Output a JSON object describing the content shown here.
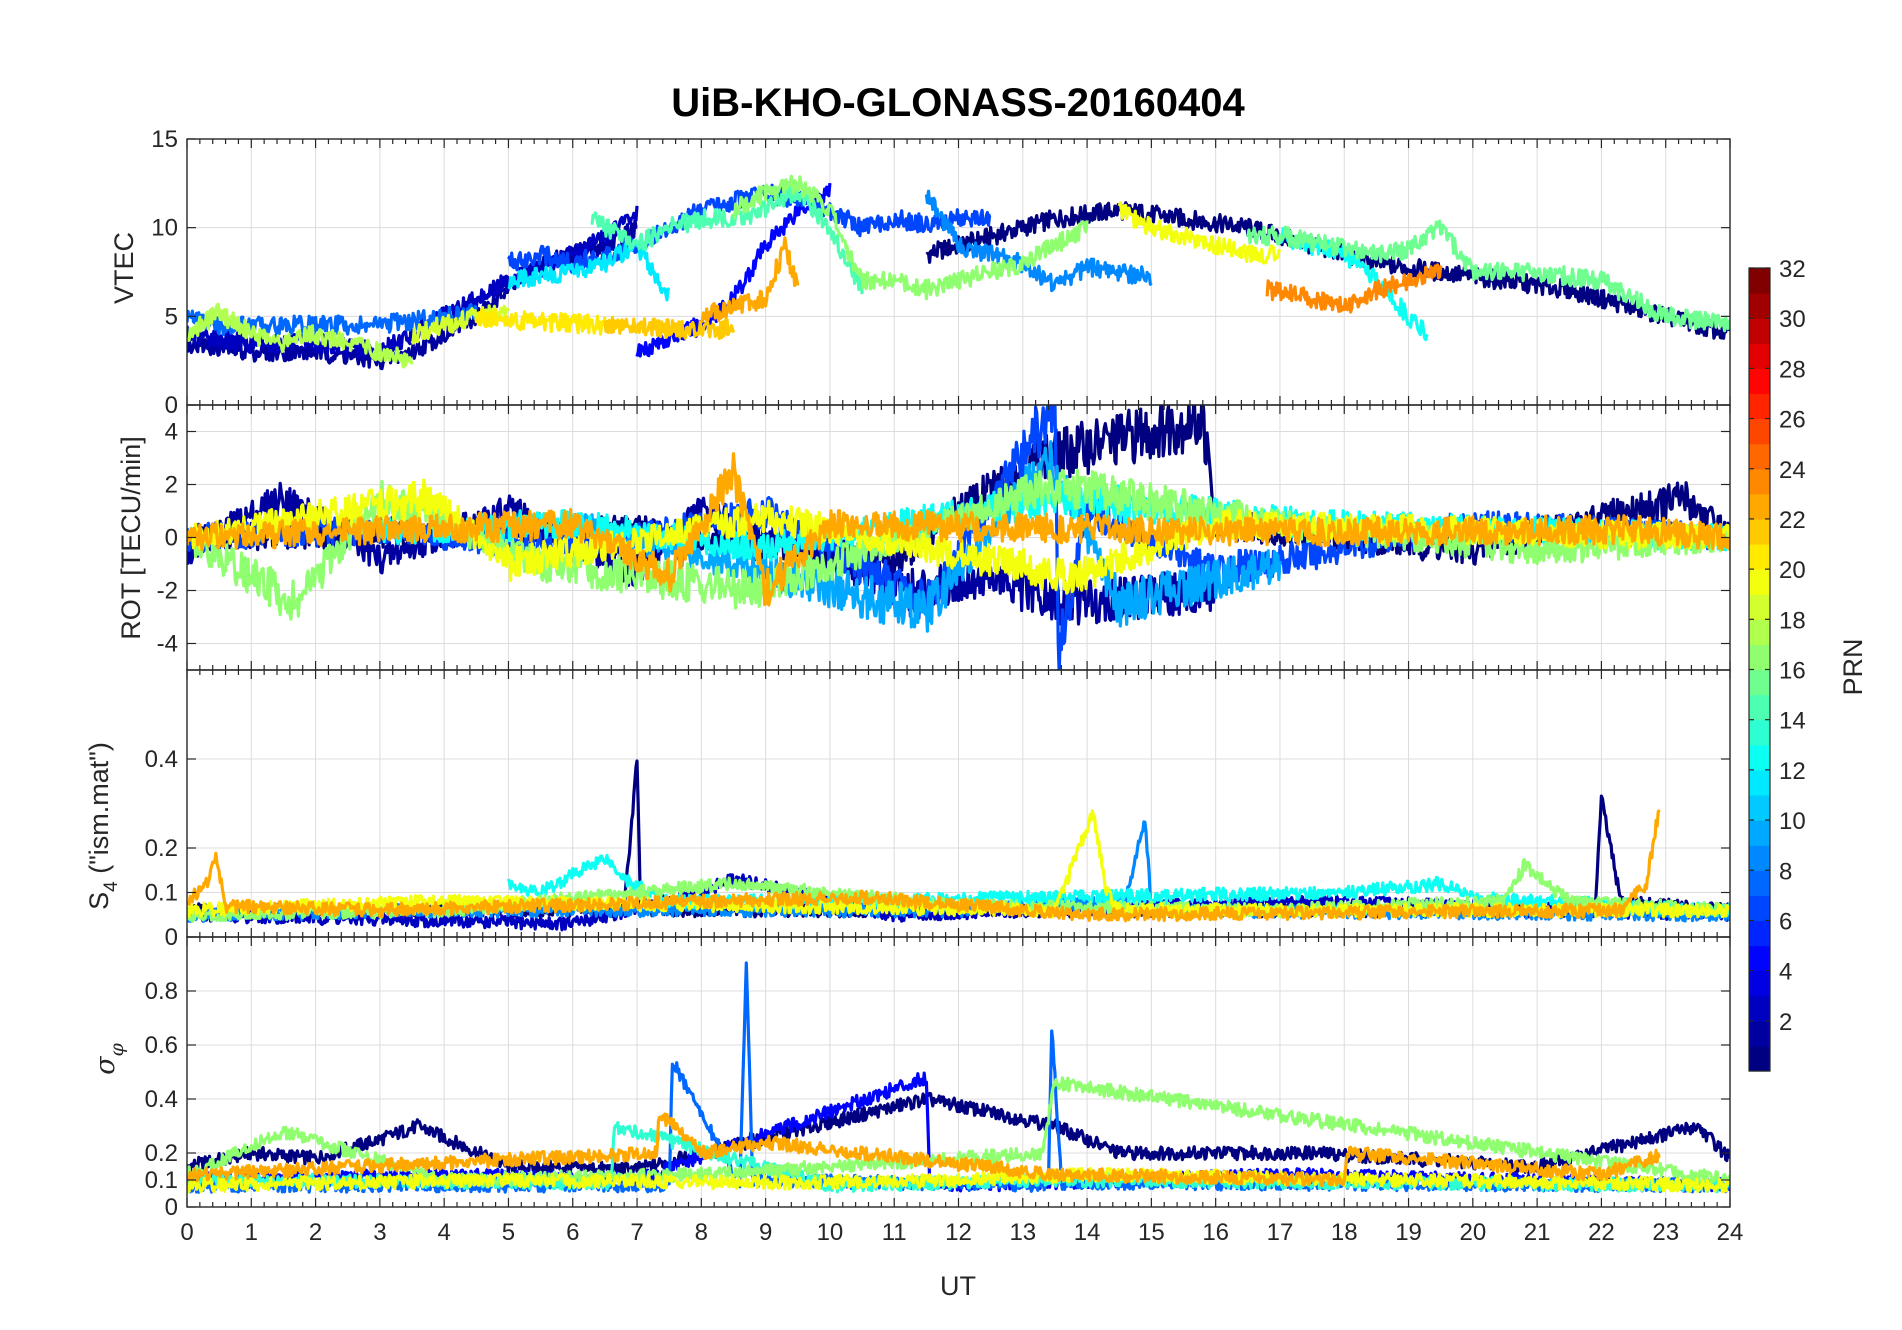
{
  "chart_data": [
    {
      "type": "line",
      "panel": "vtec",
      "title": "UiB-KHO-GLONASS-20160404",
      "xlabel": "UT",
      "ylabel": "VTEC",
      "xlim": [
        0,
        24
      ],
      "ylim": [
        0,
        15
      ],
      "xticks": [
        0,
        1,
        2,
        3,
        4,
        5,
        6,
        7,
        8,
        9,
        10,
        11,
        12,
        13,
        14,
        15,
        16,
        17,
        18,
        19,
        20,
        21,
        22,
        23,
        24
      ],
      "yticks": [
        0,
        5,
        10,
        15
      ],
      "grid": true,
      "series": [
        {
          "prn": 1,
          "x": [
            11.5,
            12.5,
            13.5,
            14.5,
            15.5,
            16.5,
            17.5,
            18.5,
            19.5,
            20.5,
            21.5,
            22.5,
            23.5,
            24
          ],
          "y": [
            8.5,
            9.5,
            10.5,
            11,
            10.5,
            10,
            9,
            8,
            7.5,
            7,
            6.5,
            5.5,
            4.5,
            4
          ]
        },
        {
          "prn": 2,
          "x": [
            0,
            1,
            2,
            3,
            3.5,
            4,
            4.5,
            5,
            5.5,
            6,
            6.5,
            7
          ],
          "y": [
            3.5,
            3,
            3,
            2.5,
            3,
            4,
            5,
            6.5,
            8,
            8.5,
            9,
            10
          ]
        },
        {
          "prn": 3,
          "x": [
            0,
            1,
            2,
            3,
            4,
            5,
            6,
            6.5,
            7
          ],
          "y": [
            4,
            3.5,
            3.5,
            3,
            5,
            7,
            8.5,
            9.5,
            10.8
          ]
        },
        {
          "prn": 5,
          "x": [
            7,
            7.5,
            8,
            8.5,
            9,
            9.5,
            10
          ],
          "y": [
            3,
            3.8,
            4.5,
            6,
            9,
            11,
            12
          ]
        },
        {
          "prn": 7,
          "x": [
            5,
            5.5,
            6,
            6.5,
            7,
            7.5,
            8,
            8.5,
            9,
            9.5,
            10,
            10.5,
            11,
            11.5,
            12,
            12.5
          ],
          "y": [
            8,
            8.5,
            8,
            8.5,
            9,
            10,
            11,
            11.5,
            12,
            11.5,
            11,
            10,
            10.5,
            10.2,
            10.5,
            10.5
          ]
        },
        {
          "prn": 8,
          "x": [
            0,
            0.5,
            1,
            2,
            3,
            4,
            4.5
          ],
          "y": [
            5,
            4.5,
            4.5,
            4.5,
            4.5,
            5,
            5.2
          ]
        },
        {
          "prn": 9,
          "x": [
            11.5,
            12,
            13,
            13.5,
            14,
            14.5,
            15
          ],
          "y": [
            12,
            9,
            8,
            6.8,
            7.8,
            7.5,
            7.2
          ]
        },
        {
          "prn": 12,
          "x": [
            5,
            6,
            6.5,
            7,
            7.5
          ],
          "y": [
            7,
            7.5,
            8,
            9,
            6
          ]
        },
        {
          "prn": 13,
          "x": [
            17,
            17.5,
            18,
            18.5,
            19,
            19.3
          ],
          "y": [
            9.5,
            9,
            8.5,
            7,
            5,
            4
          ]
        },
        {
          "prn": 15,
          "x": [
            6.3,
            7,
            7.5,
            8,
            8.5,
            9,
            9.5,
            10,
            10.5
          ],
          "y": [
            10.5,
            9,
            10,
            10.5,
            10.5,
            11,
            12,
            10,
            6.5
          ]
        },
        {
          "prn": 16,
          "x": [
            16.5,
            17,
            17.5,
            18,
            18.5,
            19,
            19.5,
            20,
            21,
            22,
            23,
            24
          ],
          "y": [
            9.5,
            9.6,
            9.2,
            8.8,
            8.5,
            8.8,
            10,
            7.5,
            7.5,
            7,
            5,
            4.5
          ]
        },
        {
          "prn": 17,
          "x": [
            8.5,
            9,
            9.5,
            10,
            10.5,
            11,
            11.5,
            12,
            12.5,
            13,
            13.5,
            14
          ],
          "y": [
            11,
            12,
            12.5,
            11,
            7,
            7,
            6.5,
            7,
            7.5,
            8,
            9,
            10
          ]
        },
        {
          "prn": 18,
          "x": [
            0,
            0.5,
            1,
            1.5,
            2,
            3,
            3.5
          ],
          "y": [
            4,
            5.2,
            4,
            3.5,
            4,
            3,
            2.5
          ]
        },
        {
          "prn": 19,
          "x": [
            3.5,
            4,
            4.5,
            5
          ],
          "y": [
            4,
            4.5,
            5,
            5.2
          ]
        },
        {
          "prn": 20,
          "x": [
            14.5,
            15,
            15.5,
            16,
            16.5,
            17
          ],
          "y": [
            11,
            10,
            9.5,
            9,
            8.5,
            8.5
          ]
        },
        {
          "prn": 21,
          "x": [
            4.5,
            5,
            5.5,
            6,
            6.5
          ],
          "y": [
            5,
            4.8,
            4.7,
            4.6,
            4.5
          ]
        },
        {
          "prn": 22,
          "x": [
            6.5,
            7,
            7.5,
            8,
            8.5
          ],
          "y": [
            4.5,
            4.5,
            4.3,
            4.2,
            4.3
          ]
        },
        {
          "prn": 23,
          "x": [
            8,
            8.5,
            9,
            9.3,
            9.5
          ],
          "y": [
            5,
            5.5,
            6,
            9,
            6.5
          ]
        },
        {
          "prn": 24,
          "x": [
            16.8,
            17.5,
            18,
            18.5,
            19,
            19.5
          ],
          "y": [
            6.5,
            6,
            5.5,
            6.5,
            7,
            7.5
          ]
        }
      ]
    },
    {
      "type": "line",
      "panel": "rot",
      "ylabel": "ROT [TECU/min]",
      "xlim": [
        0,
        24
      ],
      "ylim": [
        -5,
        5
      ],
      "yticks": [
        -4,
        -2,
        0,
        2,
        4
      ],
      "grid": true,
      "series": [
        {
          "prn": 1,
          "x": [
            0,
            7,
            11,
            12,
            13.3,
            15.8,
            16,
            20,
            23.3,
            24
          ],
          "y": [
            0,
            0.3,
            -1,
            1,
            3,
            4.5,
            0.5,
            -0.5,
            1.5,
            0
          ]
        },
        {
          "prn": 2,
          "x": [
            0,
            1.5,
            3,
            5,
            7,
            8,
            11.3,
            12.5,
            13.5,
            16
          ],
          "y": [
            -0.5,
            1.5,
            -0.8,
            1,
            -1.3,
            1,
            -2,
            -1.5,
            -2.5,
            -2
          ]
        },
        {
          "prn": 7,
          "x": [
            0,
            3,
            6,
            9,
            11.5,
            13.5,
            13.55,
            14,
            16,
            20,
            24
          ],
          "y": [
            0,
            0.3,
            -0.5,
            1,
            -2.5,
            5,
            -4.5,
            1,
            -1.3,
            0.5,
            0
          ]
        },
        {
          "prn": 10,
          "x": [
            6,
            11.5,
            13.4,
            14.5,
            17
          ],
          "y": [
            0.5,
            -2.8,
            3,
            -2.5,
            -1
          ]
        },
        {
          "prn": 13,
          "x": [
            3,
            6,
            9,
            13.5,
            17.5,
            24
          ],
          "y": [
            0.3,
            0.5,
            -0.4,
            1.5,
            0.5,
            0
          ]
        },
        {
          "prn": 17,
          "x": [
            0,
            1.7,
            3,
            5.5,
            8.8,
            13.5,
            17,
            21,
            24
          ],
          "y": [
            0,
            -2.5,
            1.5,
            -1,
            -2,
            2,
            0.5,
            -0.5,
            0
          ]
        },
        {
          "prn": 20,
          "x": [
            0,
            3.8,
            5,
            9,
            13.8,
            16,
            24
          ],
          "y": [
            0,
            1.5,
            -1,
            0.8,
            -1.5,
            0.5,
            0
          ]
        },
        {
          "prn": 23,
          "x": [
            0,
            6,
            7.5,
            8.5,
            9,
            10,
            17,
            22.5,
            24
          ],
          "y": [
            0,
            0.5,
            -1.5,
            2.5,
            -2,
            0.5,
            0.2,
            0.3,
            0
          ]
        }
      ]
    },
    {
      "type": "line",
      "panel": "s4",
      "ylabel": "S4 (\"ism.mat\")",
      "xlim": [
        0,
        24
      ],
      "ylim": [
        0,
        0.6
      ],
      "yticks": [
        0,
        0.1,
        0.2,
        0.4
      ],
      "grid": true,
      "series": [
        {
          "prn": 1,
          "x": [
            0,
            6.8,
            7.0,
            7.05,
            7.2,
            11,
            21.9,
            22.0,
            22.3,
            24
          ],
          "y": [
            0.06,
            0.06,
            0.4,
            0.08,
            0.06,
            0.06,
            0.06,
            0.31,
            0.08,
            0.06
          ]
        },
        {
          "prn": 3,
          "x": [
            0,
            3,
            6,
            8,
            8.5,
            11,
            17.5,
            24
          ],
          "y": [
            0.05,
            0.04,
            0.03,
            0.1,
            0.13,
            0.05,
            0.08,
            0.05
          ]
        },
        {
          "prn": 9,
          "x": [
            0,
            4,
            12,
            14.6,
            14.9,
            15,
            24
          ],
          "y": [
            0.05,
            0.06,
            0.06,
            0.08,
            0.27,
            0.06,
            0.05
          ]
        },
        {
          "prn": 13,
          "x": [
            5,
            5.5,
            6.5,
            6.9,
            7.5,
            10,
            18,
            19.5,
            20,
            21,
            24
          ],
          "y": [
            0.12,
            0.1,
            0.18,
            0.12,
            0.08,
            0.08,
            0.1,
            0.12,
            0.09,
            0.08,
            0.06
          ]
        },
        {
          "prn": 17,
          "x": [
            0,
            4,
            8.5,
            12,
            17,
            20.5,
            20.8,
            21.5,
            24
          ],
          "y": [
            0.05,
            0.06,
            0.12,
            0.07,
            0.06,
            0.08,
            0.16,
            0.08,
            0.06
          ]
        },
        {
          "prn": 20,
          "x": [
            0,
            4,
            13.5,
            14.1,
            14.3,
            14.5,
            24
          ],
          "y": [
            0.06,
            0.08,
            0.06,
            0.28,
            0.1,
            0.06,
            0.06
          ]
        },
        {
          "prn": 23,
          "x": [
            0,
            0.3,
            0.45,
            0.6,
            3,
            8,
            10.5,
            14,
            22.3,
            22.7,
            22.9
          ],
          "y": [
            0.08,
            0.12,
            0.18,
            0.07,
            0.06,
            0.08,
            0.09,
            0.05,
            0.06,
            0.12,
            0.29
          ]
        }
      ]
    },
    {
      "type": "line",
      "panel": "sigma-phi",
      "xlabel": "UT",
      "ylabel": "σφ",
      "xlim": [
        0,
        24
      ],
      "ylim": [
        0,
        1
      ],
      "yticks": [
        0,
        0.1,
        0.2,
        0.4,
        0.6,
        0.8
      ],
      "grid": true,
      "series": [
        {
          "prn": 1,
          "x": [
            0,
            1,
            2,
            3,
            3.6,
            5,
            7,
            11.5,
            13.5,
            14.5,
            17.5,
            21,
            23.5,
            24
          ],
          "y": [
            0.15,
            0.2,
            0.18,
            0.25,
            0.3,
            0.15,
            0.14,
            0.4,
            0.3,
            0.2,
            0.2,
            0.15,
            0.3,
            0.18
          ]
        },
        {
          "prn": 5,
          "x": [
            0,
            4,
            7,
            11.5,
            11.55,
            12,
            17,
            24
          ],
          "y": [
            0.1,
            0.12,
            0.1,
            0.48,
            0.1,
            0.08,
            0.12,
            0.08
          ]
        },
        {
          "prn": 8,
          "x": [
            0,
            7.5,
            7.55,
            8.6,
            8.7,
            8.8,
            13.4,
            13.45,
            13.6,
            24
          ],
          "y": [
            0.08,
            0.08,
            0.54,
            0.08,
            0.91,
            0.1,
            0.08,
            0.67,
            0.09,
            0.08
          ]
        },
        {
          "prn": 14,
          "x": [
            0,
            6.6,
            6.65,
            10,
            13.5,
            24
          ],
          "y": [
            0.1,
            0.09,
            0.3,
            0.08,
            0.1,
            0.08
          ]
        },
        {
          "prn": 17,
          "x": [
            0,
            1.5,
            4,
            8,
            13.3,
            13.5,
            24
          ],
          "y": [
            0.12,
            0.28,
            0.1,
            0.12,
            0.2,
            0.46,
            0.1
          ]
        },
        {
          "prn": 20,
          "x": [
            0,
            5,
            9,
            12,
            14,
            24
          ],
          "y": [
            0.08,
            0.1,
            0.09,
            0.1,
            0.12,
            0.08
          ]
        },
        {
          "prn": 23,
          "x": [
            0,
            7.3,
            7.35,
            8,
            9,
            13.5,
            18,
            18.05,
            22,
            22.9
          ],
          "y": [
            0.12,
            0.2,
            0.35,
            0.2,
            0.24,
            0.12,
            0.1,
            0.2,
            0.12,
            0.19
          ]
        }
      ]
    }
  ],
  "colorbar": {
    "label": "PRN",
    "min": 1,
    "max": 32,
    "ticks": [
      2,
      4,
      6,
      8,
      10,
      12,
      14,
      16,
      18,
      20,
      22,
      24,
      26,
      28,
      30,
      32
    ],
    "colormap": "jet"
  },
  "labels": {
    "title": "UiB-KHO-GLONASS-20160404",
    "xlabel": "UT",
    "vtec_ylabel": "VTEC",
    "rot_ylabel": "ROT [TECU/min]",
    "s4_ylabel_main": "S",
    "s4_ylabel_sub": "4",
    "s4_ylabel_rest": " (\"ism.mat\")",
    "sigma_ylabel_main": "σ",
    "sigma_ylabel_sub": "φ",
    "colorbar_label": "PRN"
  },
  "colors": {
    "axis": "#262626",
    "grid": "#dcdcdc",
    "background": "#ffffff"
  }
}
